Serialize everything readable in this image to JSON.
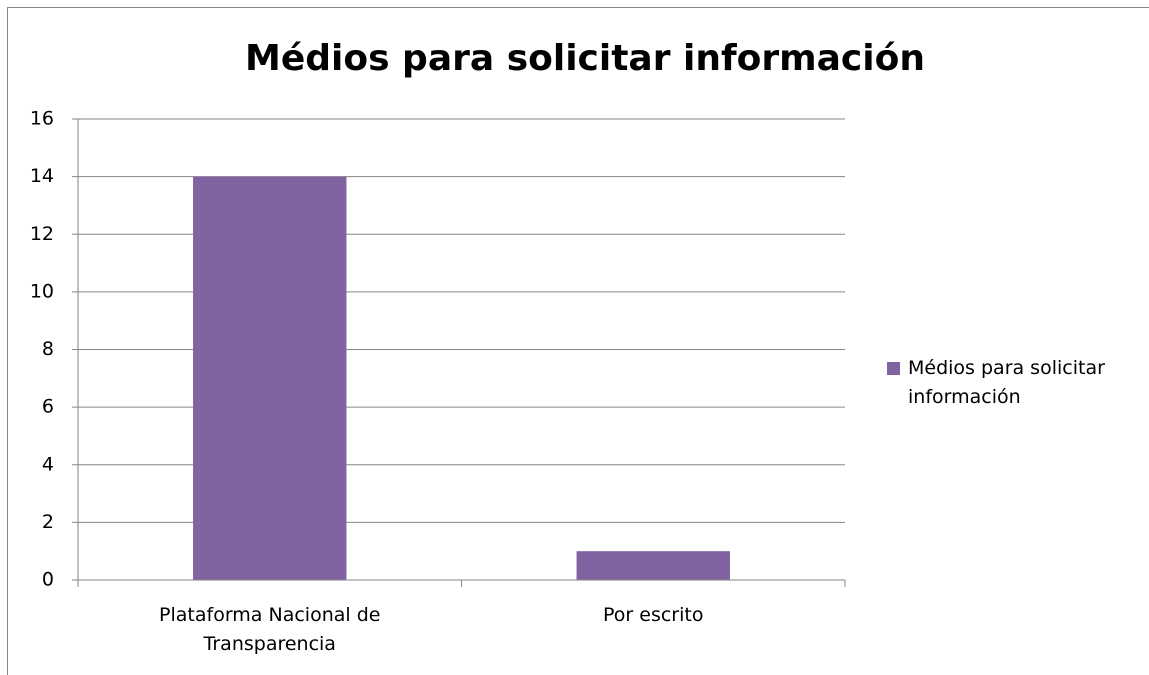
{
  "chart_data": {
    "type": "bar",
    "title": "Médios para solicitar información",
    "categories": [
      "Plataforma Nacional de Transparencia",
      "Por escrito"
    ],
    "series": [
      {
        "name": "Médios para solicitar información",
        "color": "#8064a2",
        "values": [
          14,
          1
        ]
      }
    ],
    "ylim": [
      0,
      16
    ],
    "yticks": [
      0,
      2,
      4,
      6,
      8,
      10,
      12,
      14,
      16
    ],
    "grid": true,
    "legend": "right"
  }
}
